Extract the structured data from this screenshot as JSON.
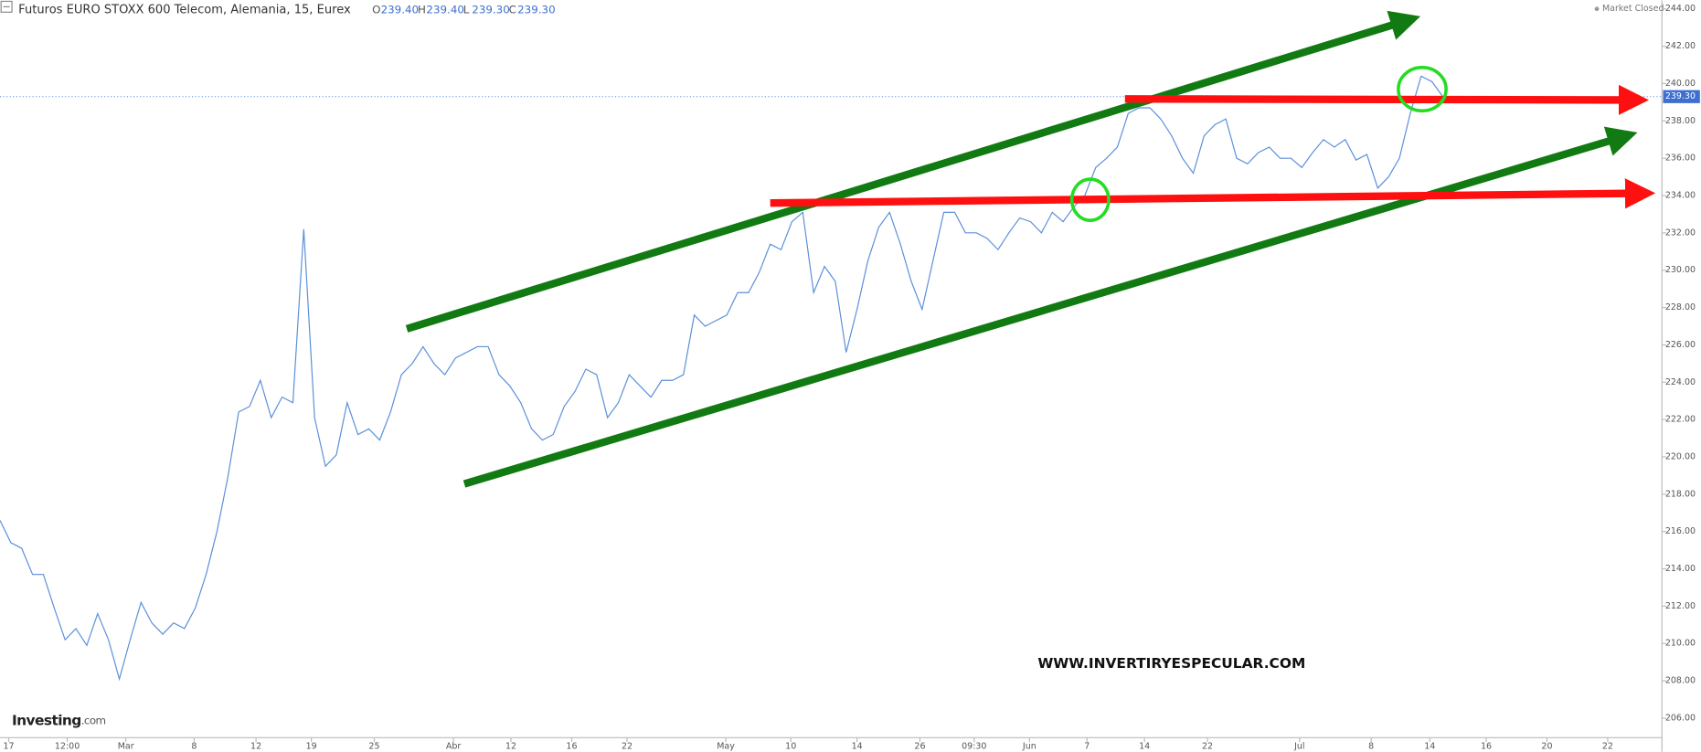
{
  "chart_data": {
    "type": "line",
    "title": "Futuros EURO STOXX 600 Telecom, Alemania, 15, Eurex",
    "ohlc": [
      {
        "label": "O",
        "value": "239.40"
      },
      {
        "label": "H",
        "value": "239.40"
      },
      {
        "label": "L",
        "value": "239.30"
      },
      {
        "label": "C",
        "value": "239.30"
      }
    ],
    "status": "Market Closed",
    "watermark": "WWW.INVERTIRYESPECULAR.COM",
    "logo": {
      "brand": "Investing",
      "suffix": ".com"
    },
    "color": "#5b8fd9",
    "values": [
      216.6,
      215.4,
      215.1,
      213.7,
      213.7,
      211.9,
      210.2,
      210.8,
      209.9,
      211.6,
      210.2,
      208.1,
      210.2,
      212.2,
      211.1,
      210.5,
      211.1,
      210.8,
      211.9,
      213.7,
      216.0,
      218.9,
      222.4,
      222.7,
      224.1,
      222.1,
      223.2,
      222.9,
      232.2,
      222.1,
      219.5,
      220.1,
      222.9,
      221.2,
      221.5,
      220.9,
      222.4,
      224.4,
      225.0,
      225.9,
      225.0,
      224.4,
      225.3,
      225.6,
      225.9,
      225.9,
      224.4,
      223.8,
      222.9,
      221.5,
      220.9,
      221.2,
      222.7,
      223.5,
      224.7,
      224.4,
      222.1,
      222.9,
      224.4,
      223.8,
      223.2,
      224.1,
      224.1,
      224.4,
      227.6,
      227.0,
      227.3,
      227.6,
      228.8,
      228.8,
      229.9,
      231.4,
      231.1,
      232.6,
      233.1,
      228.8,
      230.2,
      229.4,
      225.6,
      227.9,
      230.5,
      232.3,
      233.1,
      231.4,
      229.4,
      227.9,
      230.5,
      233.1,
      233.1,
      232.0,
      232.0,
      231.7,
      231.1,
      232.0,
      232.8,
      232.6,
      232.0,
      233.1,
      232.6,
      233.4,
      234.0,
      235.5,
      236.0,
      236.6,
      238.4,
      238.7,
      238.7,
      238.1,
      237.2,
      236.0,
      235.2,
      237.2,
      237.8,
      238.1,
      236.0,
      235.7,
      236.3,
      236.6,
      236.0,
      236.0,
      235.5,
      236.3,
      237.0,
      236.6,
      237.0,
      235.9,
      236.2,
      234.4,
      235.0,
      236.0,
      238.4,
      240.4,
      240.1,
      239.3
    ],
    "last_price": {
      "value": 239.3,
      "label": "239.30"
    },
    "xlim": [
      0,
      153
    ],
    "xticks": [
      {
        "value": 0.8,
        "label": "17"
      },
      {
        "value": 6.2,
        "label": "12:00"
      },
      {
        "value": 11.6,
        "label": "Mar"
      },
      {
        "value": 17.9,
        "label": "8"
      },
      {
        "value": 23.6,
        "label": "12"
      },
      {
        "value": 28.7,
        "label": "19"
      },
      {
        "value": 34.5,
        "label": "25"
      },
      {
        "value": 41.8,
        "label": "Abr"
      },
      {
        "value": 47.1,
        "label": "12"
      },
      {
        "value": 52.7,
        "label": "16"
      },
      {
        "value": 57.8,
        "label": "22"
      },
      {
        "value": 66.9,
        "label": "May"
      },
      {
        "value": 72.9,
        "label": "10"
      },
      {
        "value": 79.0,
        "label": "14"
      },
      {
        "value": 84.8,
        "label": "26"
      },
      {
        "value": 89.8,
        "label": "09:30"
      },
      {
        "value": 94.9,
        "label": "Jun"
      },
      {
        "value": 100.2,
        "label": "7"
      },
      {
        "value": 105.5,
        "label": "14"
      },
      {
        "value": 111.3,
        "label": "22"
      },
      {
        "value": 119.8,
        "label": "Jul"
      },
      {
        "value": 126.4,
        "label": "8"
      },
      {
        "value": 131.8,
        "label": "14"
      },
      {
        "value": 137.0,
        "label": "16"
      },
      {
        "value": 142.6,
        "label": "20"
      },
      {
        "value": 148.2,
        "label": "22"
      }
    ],
    "ylim": [
      206,
      244
    ],
    "yticks": [
      {
        "value": 206,
        "label": "206.00"
      },
      {
        "value": 208,
        "label": "208.00"
      },
      {
        "value": 210,
        "label": "210.00"
      },
      {
        "value": 212,
        "label": "212.00"
      },
      {
        "value": 214,
        "label": "214.00"
      },
      {
        "value": 216,
        "label": "216.00"
      },
      {
        "value": 218,
        "label": "218.00"
      },
      {
        "value": 220,
        "label": "220.00"
      },
      {
        "value": 222,
        "label": "222.00"
      },
      {
        "value": 224,
        "label": "224.00"
      },
      {
        "value": 226,
        "label": "226.00"
      },
      {
        "value": 228,
        "label": "228.00"
      },
      {
        "value": 230,
        "label": "230.00"
      },
      {
        "value": 232,
        "label": "232.00"
      },
      {
        "value": 234,
        "label": "234.00"
      },
      {
        "value": 236,
        "label": "236.00"
      },
      {
        "value": 238,
        "label": "238.00"
      },
      {
        "value": 240,
        "label": "240.00"
      },
      {
        "value": 242,
        "label": "242.00"
      },
      {
        "value": 244,
        "label": "244.00"
      }
    ]
  }
}
